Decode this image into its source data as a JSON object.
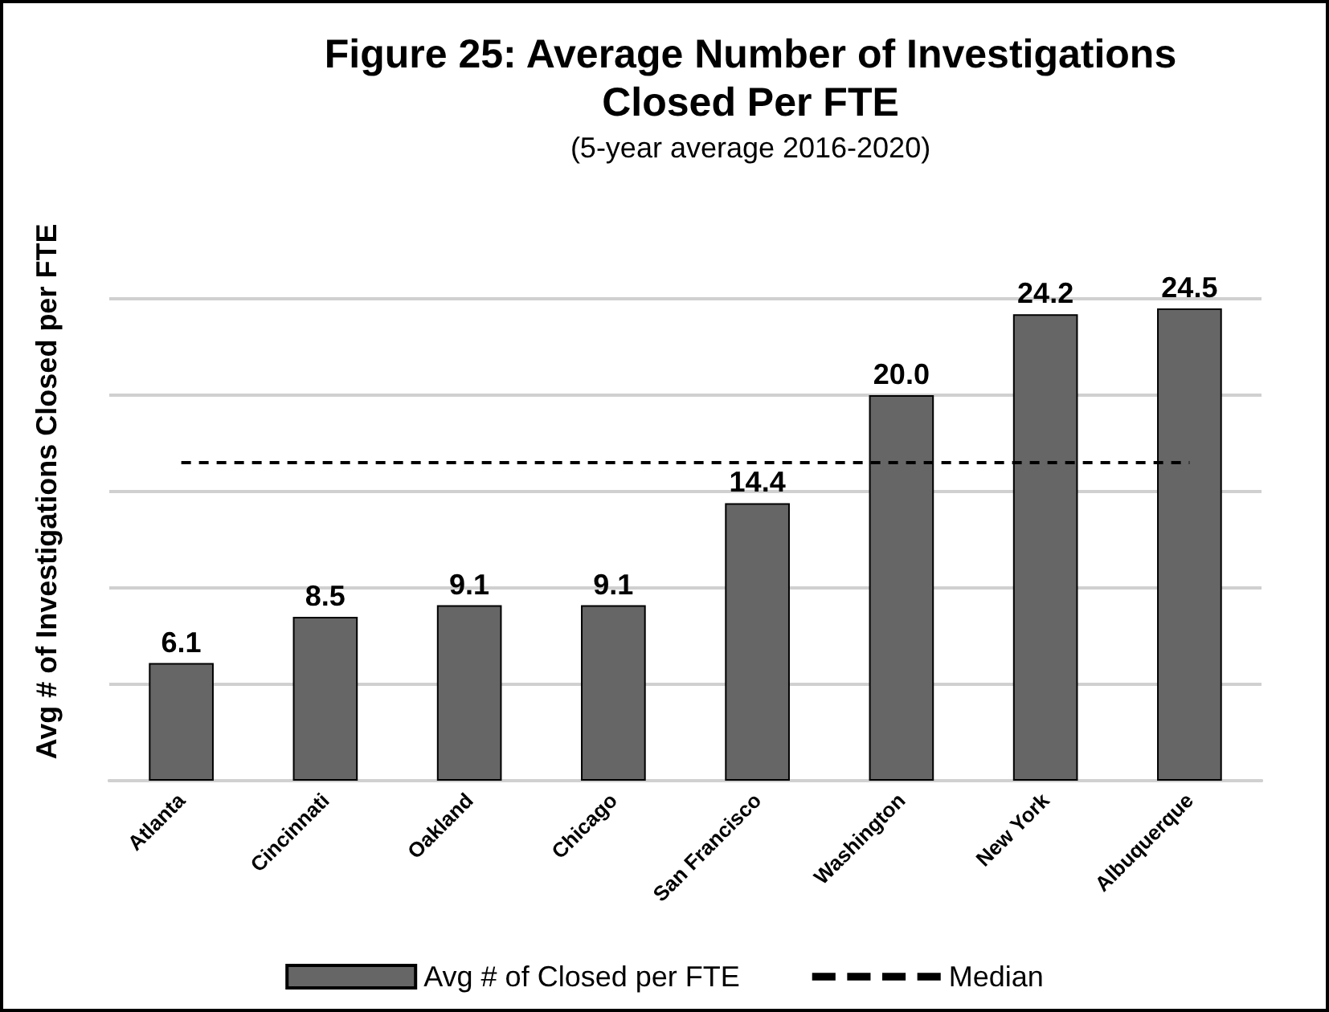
{
  "chart_data": {
    "type": "bar",
    "title": "Figure 25: Average Number of Investigations\nClosed Per FTE",
    "subtitle": "(5-year average 2016-2020)",
    "ylabel": "Avg # of Investigations Closed per FTE",
    "categories": [
      "Atlanta",
      "Cincinnati",
      "Oakland",
      "Chicago",
      "San Francisco",
      "Washington",
      "New York",
      "Albuquerque"
    ],
    "series": [
      {
        "name": "Avg # of Closed per FTE",
        "color": "#666666",
        "values": [
          6.1,
          8.5,
          9.1,
          9.1,
          14.4,
          20.0,
          24.2,
          24.5
        ],
        "value_labels": [
          "6.1",
          "8.5",
          "9.1",
          "9.1",
          "14.4",
          "20.0",
          "24.2",
          "24.5"
        ]
      }
    ],
    "yticks": [
      {
        "value": 0,
        "label": null
      },
      {
        "value": 5,
        "label": null
      },
      {
        "value": 10,
        "label": null
      },
      {
        "value": 15,
        "label": null
      },
      {
        "value": 20,
        "label": null
      },
      {
        "value": 25,
        "label": null
      }
    ],
    "tick_labels": "x",
    "grid": "y",
    "legend": "bottom",
    "ref_lines": [
      {
        "axis": "y",
        "value": 16.5,
        "label": "Median",
        "color": "#000000",
        "line_style": "dashed"
      }
    ]
  }
}
